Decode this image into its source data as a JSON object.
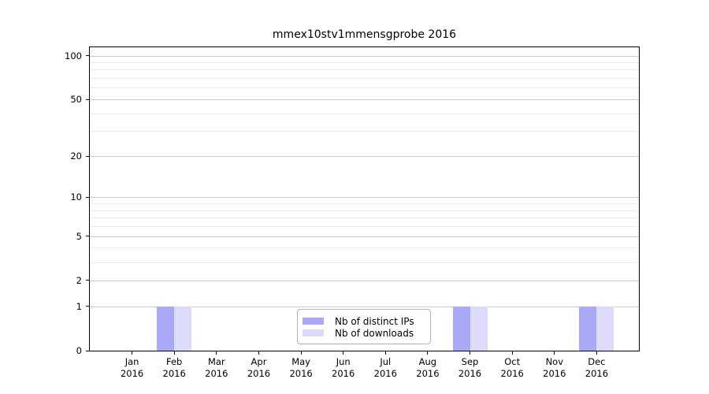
{
  "chart_data": {
    "type": "bar",
    "title": "mmex10stv1mmensgprobe 2016",
    "categories": [
      "Jan",
      "Feb",
      "Mar",
      "Apr",
      "May",
      "Jun",
      "Jul",
      "Aug",
      "Sep",
      "Oct",
      "Nov",
      "Dec"
    ],
    "x_tick_year": "2016",
    "series": [
      {
        "name": "Nb of distinct IPs",
        "color": "#a9a9f7",
        "values": [
          0,
          1,
          0,
          0,
          0,
          0,
          0,
          0,
          1,
          0,
          0,
          1
        ]
      },
      {
        "name": "Nb of downloads",
        "color": "#dcdcfa",
        "values": [
          0,
          1,
          0,
          0,
          0,
          0,
          0,
          0,
          1,
          0,
          0,
          1
        ]
      }
    ],
    "y_scale": "log1p",
    "y_major_ticks": [
      0,
      1,
      2,
      5,
      10,
      20,
      50,
      100
    ],
    "y_minor_gridlines": [
      3,
      4,
      6,
      7,
      8,
      9,
      30,
      40,
      60,
      70,
      80,
      90
    ],
    "ylim": [
      0,
      114
    ],
    "grid": "horizontal",
    "legend_position": "lower-center",
    "colors": {
      "major_grid": "#cccccc",
      "minor_grid": "#ebebeb",
      "spine": "#000000",
      "text": "#000000",
      "legend_border": "#b3b3b3",
      "background": "#ffffff"
    }
  }
}
